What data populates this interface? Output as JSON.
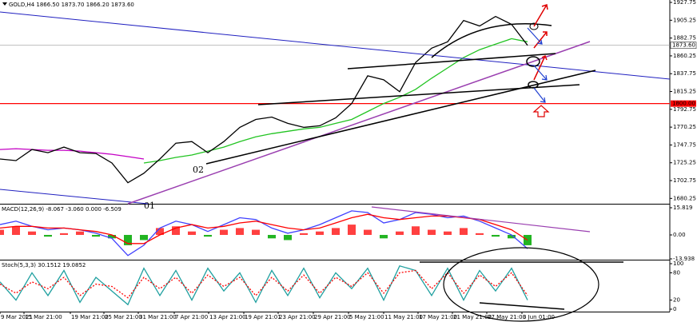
{
  "chart_data": [
    {
      "type": "line",
      "title": "GOLD,H4 1866.50 1873.70 1866.20 1873.60",
      "x": [
        0,
        1,
        2,
        3,
        4,
        5,
        6,
        7,
        8,
        9,
        10,
        11,
        12,
        13,
        14,
        15,
        16,
        17,
        18,
        19,
        20,
        21,
        22,
        23,
        24,
        25,
        26,
        27,
        28,
        29,
        30,
        31,
        32,
        33
      ],
      "xlim": [
        0,
        41.9
      ],
      "ylim": [
        1673.5,
        1930.8
      ],
      "yticks": [
        1927.75,
        1905.25,
        1882.75,
        1860.25,
        1837.75,
        1815.25,
        1792.75,
        1770.25,
        1747.75,
        1725.25,
        1702.75,
        1680.25
      ],
      "series": [
        {
          "type": "line",
          "color": "#c400c4",
          "values": [
            1742,
            1743,
            1742,
            1741,
            1741,
            1740,
            1738,
            1736,
            1733,
            1730,
            null,
            null,
            null,
            null,
            null,
            null,
            null,
            null,
            null,
            null,
            null,
            null,
            null,
            null,
            null,
            null,
            null,
            null,
            null,
            null,
            null,
            null,
            null,
            null
          ]
        },
        {
          "type": "line",
          "color": "#22c422",
          "values": [
            null,
            null,
            null,
            null,
            null,
            null,
            null,
            null,
            null,
            1725,
            1728,
            1732,
            1735,
            1740,
            1745,
            1752,
            1758,
            1762,
            1765,
            1768,
            1770,
            1775,
            1780,
            1790,
            1800,
            1808,
            1818,
            1832,
            1845,
            1858,
            1868,
            1875,
            1882,
            1878
          ]
        },
        {
          "type": "line",
          "color": "#000000",
          "values": [
            1730,
            1728,
            1742,
            1738,
            1745,
            1738,
            1737,
            1725,
            1700,
            1712,
            1730,
            1750,
            1752,
            1738,
            1752,
            1770,
            1780,
            1783,
            1775,
            1770,
            1772,
            1782,
            1800,
            1835,
            1830,
            1815,
            1852,
            1870,
            1878,
            1905,
            1898,
            1910,
            1900,
            1873.6
          ]
        }
      ],
      "hlines": [
        {
          "value": 1800,
          "label": "1800.00",
          "color": "#ff0000"
        },
        {
          "value": 1873.6,
          "label": "1873.60",
          "color": "#9a9a9a"
        }
      ],
      "annotations": [
        "01",
        "02"
      ]
    },
    {
      "type": "macd",
      "title": "MACD(12,26,9) -8.067 -3.060 0.000 -6.509",
      "x": [
        0,
        1,
        2,
        3,
        4,
        5,
        6,
        7,
        8,
        9,
        10,
        11,
        12,
        13,
        14,
        15,
        16,
        17,
        18,
        19,
        20,
        21,
        22,
        23,
        24,
        25,
        26,
        27,
        28,
        29,
        30,
        31,
        32,
        33
      ],
      "xlim": [
        0,
        41.9
      ],
      "ylim": [
        -14.4,
        17.67
      ],
      "yticks": [
        15.819,
        {
          "value": 0,
          "label": "0.00"
        },
        -13.938
      ],
      "series": [
        {
          "type": "bar",
          "color": "#ff4040",
          "negative_color": "#22b422",
          "values": [
            3,
            5,
            2,
            -1,
            1,
            2,
            -1,
            -2,
            -6,
            -3,
            4,
            5,
            2,
            -1,
            3,
            4,
            3,
            -2,
            -3,
            1,
            2,
            4,
            6,
            3,
            -2,
            2,
            5,
            3,
            2,
            4,
            1,
            -1,
            -2,
            -6
          ]
        },
        {
          "type": "line",
          "color": "#4040ff",
          "values": [
            6,
            8,
            5,
            3,
            4,
            3,
            1,
            -2,
            -12,
            -6,
            4,
            8,
            6,
            2,
            6,
            10,
            9,
            4,
            1,
            3,
            6,
            10,
            14,
            13,
            7,
            9,
            13,
            12,
            10,
            11,
            8,
            4,
            0,
            -8
          ]
        },
        {
          "type": "line",
          "color": "#ff0000",
          "values": [
            4,
            5,
            5,
            4,
            4,
            3,
            2,
            0,
            -5,
            -5,
            0,
            4,
            6,
            4,
            5,
            7,
            8,
            6,
            4,
            3,
            4,
            7,
            10,
            12,
            10,
            9,
            10,
            11,
            11,
            10,
            9,
            6,
            3,
            -3
          ]
        }
      ]
    },
    {
      "type": "stochastic",
      "title": "Stoch(5,3,3) 30.1512 19.0852",
      "x": [
        0,
        1,
        2,
        3,
        4,
        5,
        6,
        7,
        8,
        9,
        10,
        11,
        12,
        13,
        14,
        15,
        16,
        17,
        18,
        19,
        20,
        21,
        22,
        23,
        24,
        25,
        26,
        27,
        28,
        29,
        30,
        31,
        32,
        33
      ],
      "xlim": [
        0,
        41.9
      ],
      "ylim": [
        -5.3,
        107
      ],
      "yticks": [
        100,
        80,
        20,
        0
      ],
      "xticks": [
        {
          "value": 0,
          "label": "9 Mar 2021"
        },
        {
          "value": 1.5,
          "label": "15 Mar 21:00"
        },
        {
          "value": 4.4,
          "label": "19 Mar 21:00"
        },
        {
          "value": 6.5,
          "label": "25 Mar 21:00"
        },
        {
          "value": 8.65,
          "label": "31 Mar 21:00"
        },
        {
          "value": 10.9,
          "label": "7 Apr 21:00"
        },
        {
          "value": 13.05,
          "label": "13 Apr 21:00"
        },
        {
          "value": 15.25,
          "label": "19 Apr 21:01"
        },
        {
          "value": 17.4,
          "label": "23 Apr 21:00"
        },
        {
          "value": 19.6,
          "label": "29 Apr 21:00"
        },
        {
          "value": 21.8,
          "label": "5 May 21:00"
        },
        {
          "value": 24,
          "label": "11 May 21:00"
        },
        {
          "value": 26.15,
          "label": "17 May 21:00"
        },
        {
          "value": 28.3,
          "label": "21 May 21:00"
        },
        {
          "value": 30.45,
          "label": "27 May 21:00"
        },
        {
          "value": 32.65,
          "label": "3 Jun 01:00"
        }
      ],
      "series": [
        {
          "type": "line",
          "color": "#20a0a0",
          "values": [
            60,
            20,
            80,
            30,
            85,
            15,
            70,
            40,
            10,
            90,
            30,
            85,
            20,
            90,
            40,
            80,
            15,
            85,
            30,
            90,
            25,
            80,
            45,
            90,
            20,
            95,
            85,
            30,
            90,
            20,
            85,
            40,
            90,
            20
          ]
        },
        {
          "type": "line",
          "color": "#ff0000",
          "dash": true,
          "values": [
            55,
            35,
            60,
            45,
            70,
            30,
            55,
            50,
            25,
            70,
            45,
            70,
            35,
            75,
            50,
            70,
            30,
            70,
            40,
            75,
            35,
            70,
            50,
            80,
            35,
            80,
            85,
            45,
            80,
            35,
            75,
            50,
            80,
            30
          ]
        }
      ]
    }
  ]
}
